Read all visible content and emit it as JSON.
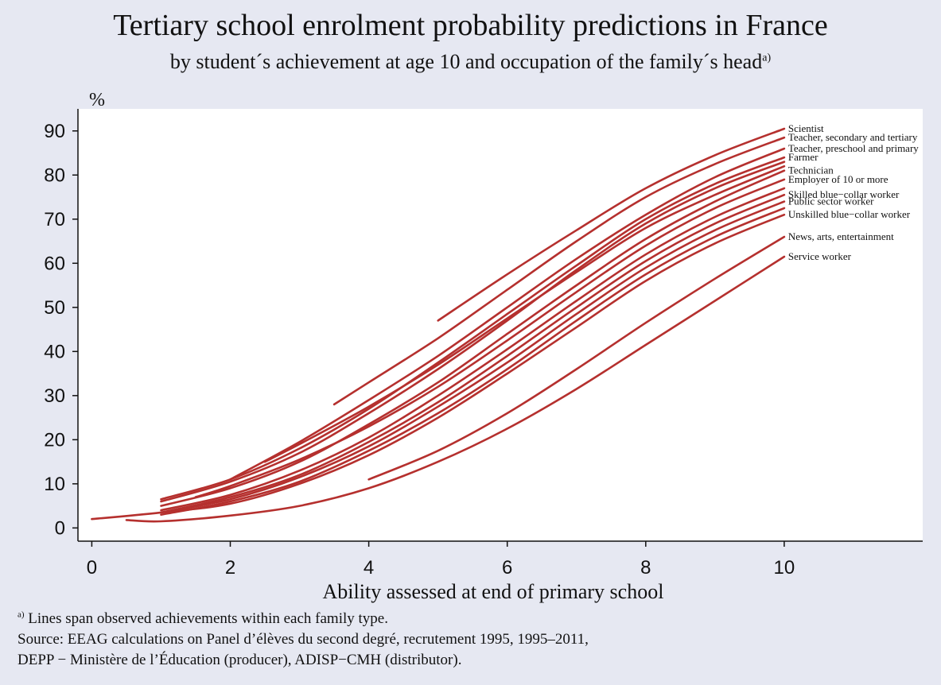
{
  "title": "Tertiary school enrolment probability predictions in France",
  "subtitle": "by student´s achievement at age 10 and occupation of the family´s head",
  "subtitle_marker": "a)",
  "footnote_marker": "a)",
  "footnote": " Lines span observed achievements within each family type.",
  "source_line1": "Source: EEAG calculations on Panel d’élèves du second degré, recrutement 1995, 1995–2011,",
  "source_line2": "DEPP − Ministère de l’Éducation (producer), ADISP−CMH (distributor).",
  "colors": {
    "line": "#b5302e",
    "plot_bg": "#ffffff",
    "page_bg": "#e6e8f2"
  },
  "chart_data": {
    "type": "line",
    "title": "Tertiary school enrolment probability predictions in France",
    "xlabel": "Ability assessed at end of primary school",
    "ylabel": "%",
    "xlim": [
      -0.2,
      12.0
    ],
    "ylim": [
      -3,
      95
    ],
    "x_ticks": [
      0,
      2,
      4,
      6,
      8,
      10
    ],
    "y_ticks": [
      0,
      10,
      20,
      30,
      40,
      50,
      60,
      70,
      80,
      90
    ],
    "grid": false,
    "legend": "labels at line ends (right)",
    "series": [
      {
        "name": "Scientist",
        "points": [
          [
            5,
            47
          ],
          [
            6,
            57.5
          ],
          [
            7,
            67.5
          ],
          [
            8,
            77
          ],
          [
            9,
            84.5
          ],
          [
            10,
            90.5
          ]
        ]
      },
      {
        "name": "Teacher, secondary and tertiary",
        "points": [
          [
            3.5,
            28
          ],
          [
            4,
            33
          ],
          [
            5,
            43
          ],
          [
            6,
            54
          ],
          [
            7,
            65
          ],
          [
            8,
            75
          ],
          [
            9,
            82.5
          ],
          [
            10,
            88.5
          ]
        ]
      },
      {
        "name": "Teacher, preschool and primary",
        "points": [
          [
            2,
            11
          ],
          [
            3,
            19.5
          ],
          [
            4,
            29
          ],
          [
            5,
            39
          ],
          [
            6,
            50
          ],
          [
            7,
            61
          ],
          [
            8,
            71
          ],
          [
            9,
            79.5
          ],
          [
            10,
            86
          ]
        ]
      },
      {
        "name": "Farmer",
        "points": [
          [
            1,
            6.5
          ],
          [
            2,
            11
          ],
          [
            3,
            18
          ],
          [
            4,
            27
          ],
          [
            5,
            37.5
          ],
          [
            6,
            48.5
          ],
          [
            7,
            59.5
          ],
          [
            8,
            70
          ],
          [
            9,
            78
          ],
          [
            10,
            84
          ]
        ]
      },
      {
        "name": "",
        "points": [
          [
            1,
            6
          ],
          [
            2,
            10.5
          ],
          [
            3,
            17
          ],
          [
            4,
            26
          ],
          [
            5,
            36
          ],
          [
            6,
            47
          ],
          [
            7,
            58.5
          ],
          [
            8,
            69
          ],
          [
            9,
            77
          ],
          [
            10,
            83
          ]
        ]
      },
      {
        "name": "",
        "points": [
          [
            2.5,
            15
          ],
          [
            3,
            19
          ],
          [
            4,
            27.5
          ],
          [
            5,
            37
          ],
          [
            6,
            47.5
          ],
          [
            7,
            58
          ],
          [
            8,
            68
          ],
          [
            9,
            75.5
          ],
          [
            10,
            82
          ]
        ]
      },
      {
        "name": "Technician",
        "points": [
          [
            1,
            5
          ],
          [
            2,
            9
          ],
          [
            3,
            15
          ],
          [
            4,
            23.5
          ],
          [
            5,
            33
          ],
          [
            6,
            44
          ],
          [
            7,
            55
          ],
          [
            8,
            65.5
          ],
          [
            9,
            74
          ],
          [
            10,
            81
          ]
        ]
      },
      {
        "name": "Employer of 10 or more",
        "points": [
          [
            1.5,
            7
          ],
          [
            2,
            9.5
          ],
          [
            3,
            15.5
          ],
          [
            4,
            23
          ],
          [
            5,
            32
          ],
          [
            6,
            42.5
          ],
          [
            7,
            53.5
          ],
          [
            8,
            64
          ],
          [
            9,
            72.5
          ],
          [
            10,
            79
          ]
        ]
      },
      {
        "name": "",
        "points": [
          [
            1,
            4
          ],
          [
            2,
            7.5
          ],
          [
            3,
            13
          ],
          [
            4,
            20.5
          ],
          [
            5,
            30
          ],
          [
            6,
            40.5
          ],
          [
            7,
            51.5
          ],
          [
            8,
            62
          ],
          [
            9,
            70.5
          ],
          [
            10,
            77
          ]
        ]
      },
      {
        "name": "Skilled blue−collar worker",
        "points": [
          [
            1,
            3.5
          ],
          [
            2,
            7
          ],
          [
            3,
            12
          ],
          [
            4,
            19.5
          ],
          [
            5,
            28.5
          ],
          [
            6,
            39
          ],
          [
            7,
            50
          ],
          [
            8,
            60.5
          ],
          [
            9,
            69
          ],
          [
            10,
            75.5
          ]
        ]
      },
      {
        "name": "Public sector worker",
        "points": [
          [
            1,
            3.5
          ],
          [
            2,
            6.5
          ],
          [
            3,
            11.5
          ],
          [
            4,
            18.5
          ],
          [
            5,
            27.5
          ],
          [
            6,
            37.5
          ],
          [
            7,
            48.5
          ],
          [
            8,
            59
          ],
          [
            9,
            67.5
          ],
          [
            10,
            74
          ]
        ]
      },
      {
        "name": "",
        "points": [
          [
            1,
            3
          ],
          [
            2,
            6
          ],
          [
            3,
            10.5
          ],
          [
            4,
            17.5
          ],
          [
            5,
            26
          ],
          [
            6,
            36
          ],
          [
            7,
            47
          ],
          [
            8,
            57.5
          ],
          [
            9,
            66
          ],
          [
            10,
            72.5
          ]
        ]
      },
      {
        "name": "Unskilled blue−collar worker",
        "points": [
          [
            0,
            2
          ],
          [
            1,
            3.5
          ],
          [
            2,
            5.5
          ],
          [
            3,
            10
          ],
          [
            4,
            16.5
          ],
          [
            5,
            25
          ],
          [
            6,
            35
          ],
          [
            7,
            45.5
          ],
          [
            8,
            56
          ],
          [
            9,
            64.5
          ],
          [
            10,
            71
          ]
        ]
      },
      {
        "name": "News, arts, entertainment",
        "points": [
          [
            4,
            11
          ],
          [
            5,
            17.5
          ],
          [
            6,
            26
          ],
          [
            7,
            36
          ],
          [
            8,
            46.5
          ],
          [
            9,
            56.5
          ],
          [
            10,
            66
          ]
        ]
      },
      {
        "name": "Service worker",
        "points": [
          [
            0.5,
            1.8
          ],
          [
            1,
            1.5
          ],
          [
            2,
            2.8
          ],
          [
            3,
            5
          ],
          [
            4,
            9
          ],
          [
            5,
            15
          ],
          [
            6,
            22.5
          ],
          [
            7,
            31.5
          ],
          [
            8,
            41.5
          ],
          [
            9,
            51.5
          ],
          [
            10,
            61.5
          ]
        ]
      }
    ]
  }
}
